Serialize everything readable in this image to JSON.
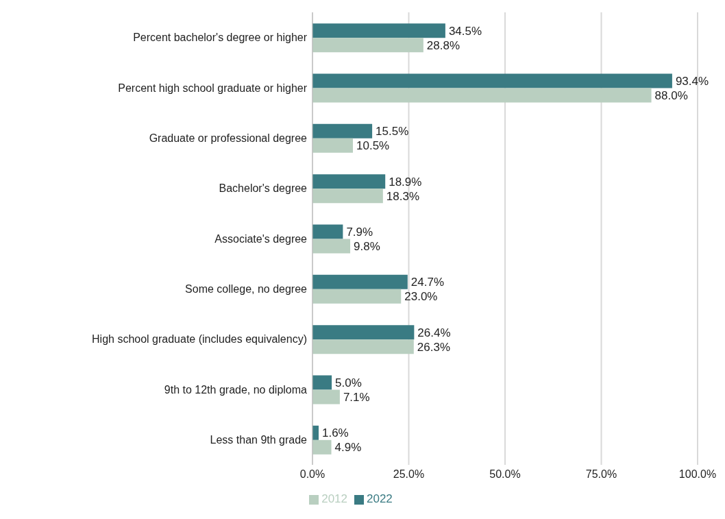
{
  "chart_data": {
    "type": "bar",
    "orientation": "horizontal",
    "categories": [
      "Percent bachelor's degree or higher",
      "Percent high school graduate or higher",
      "Graduate or professional degree",
      "Bachelor's degree",
      "Associate's degree",
      "Some college, no degree",
      "High school graduate (includes equivalency)",
      "9th to 12th grade, no diploma",
      "Less than 9th grade"
    ],
    "series": [
      {
        "name": "2022",
        "color": "#3a7b83",
        "values": [
          34.5,
          93.4,
          15.5,
          18.9,
          7.9,
          24.7,
          26.4,
          5.0,
          1.6
        ],
        "value_labels": [
          "34.5%",
          "93.4%",
          "15.5%",
          "18.9%",
          "7.9%",
          "24.7%",
          "26.4%",
          "5.0%",
          "1.6%"
        ]
      },
      {
        "name": "2012",
        "color": "#b9cfc0",
        "values": [
          28.8,
          88.0,
          10.5,
          18.3,
          9.8,
          23.0,
          26.3,
          7.1,
          4.9
        ],
        "value_labels": [
          "28.8%",
          "88.0%",
          "10.5%",
          "18.3%",
          "9.8%",
          "23.0%",
          "26.3%",
          "7.1%",
          "4.9%"
        ]
      }
    ],
    "xlim": [
      0,
      100
    ],
    "xticks": [
      {
        "value": 0,
        "label": "0.0%"
      },
      {
        "value": 25,
        "label": "25.0%"
      },
      {
        "value": 50,
        "label": "50.0%"
      },
      {
        "value": 75,
        "label": "75.0%"
      },
      {
        "value": 100,
        "label": "100.0%"
      }
    ],
    "grid": "x",
    "legend": "bottom"
  }
}
